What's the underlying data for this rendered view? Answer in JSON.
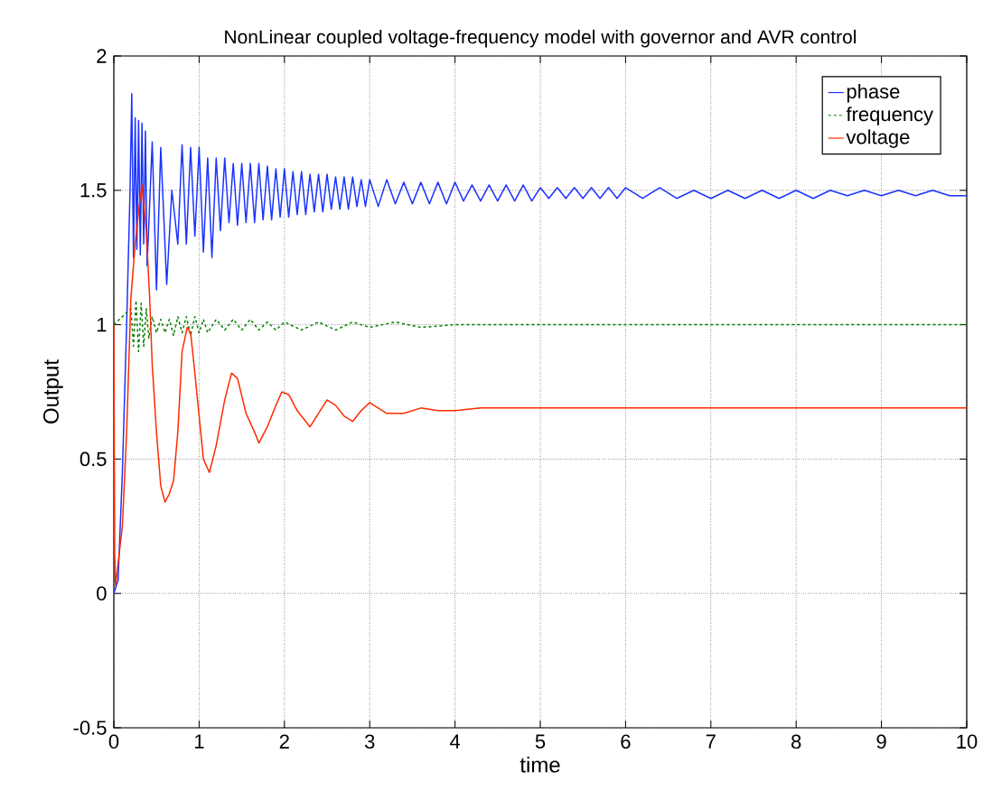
{
  "chart_data": {
    "type": "line",
    "title": "NonLinear coupled voltage-frequency model with governor and AVR control",
    "xlabel": "time",
    "ylabel": "Output",
    "xlim": [
      0,
      10
    ],
    "ylim": [
      -0.5,
      2
    ],
    "xticks": [
      0,
      1,
      2,
      3,
      4,
      5,
      6,
      7,
      8,
      9,
      10
    ],
    "yticks": [
      -0.5,
      0,
      0.5,
      1,
      1.5,
      2
    ],
    "grid": true,
    "legend": "top right",
    "series": [
      {
        "name": "phase",
        "color": "#1a33ff",
        "line_style": "solid",
        "x": [
          0,
          0.05,
          0.1,
          0.15,
          0.19,
          0.21,
          0.23,
          0.25,
          0.27,
          0.29,
          0.31,
          0.33,
          0.35,
          0.37,
          0.39,
          0.45,
          0.5,
          0.55,
          0.62,
          0.68,
          0.75,
          0.8,
          0.85,
          0.9,
          0.95,
          1.0,
          1.05,
          1.1,
          1.15,
          1.2,
          1.25,
          1.3,
          1.35,
          1.4,
          1.45,
          1.5,
          1.55,
          1.6,
          1.65,
          1.7,
          1.75,
          1.8,
          1.85,
          1.9,
          1.95,
          2.0,
          2.05,
          2.1,
          2.15,
          2.2,
          2.25,
          2.3,
          2.35,
          2.4,
          2.45,
          2.5,
          2.55,
          2.6,
          2.65,
          2.7,
          2.75,
          2.8,
          2.85,
          2.9,
          2.95,
          3.0,
          3.1,
          3.2,
          3.3,
          3.4,
          3.5,
          3.6,
          3.7,
          3.8,
          3.9,
          4.0,
          4.1,
          4.2,
          4.3,
          4.4,
          4.5,
          4.6,
          4.7,
          4.8,
          4.9,
          5.0,
          5.1,
          5.2,
          5.3,
          5.4,
          5.5,
          5.6,
          5.7,
          5.8,
          5.9,
          6.0,
          6.2,
          6.4,
          6.6,
          6.8,
          7.0,
          7.2,
          7.4,
          7.6,
          7.8,
          8.0,
          8.2,
          8.4,
          8.6,
          8.8,
          9.0,
          9.2,
          9.4,
          9.6,
          9.8,
          10
        ],
        "values": [
          0,
          0.05,
          0.45,
          1.0,
          1.5,
          1.86,
          1.25,
          1.77,
          1.28,
          1.76,
          1.26,
          1.75,
          1.3,
          1.72,
          1.22,
          1.68,
          1.13,
          1.66,
          1.15,
          1.5,
          1.3,
          1.67,
          1.3,
          1.66,
          1.33,
          1.66,
          1.27,
          1.62,
          1.25,
          1.62,
          1.35,
          1.62,
          1.38,
          1.6,
          1.37,
          1.6,
          1.38,
          1.6,
          1.38,
          1.6,
          1.39,
          1.59,
          1.39,
          1.58,
          1.4,
          1.58,
          1.4,
          1.57,
          1.41,
          1.57,
          1.41,
          1.56,
          1.42,
          1.56,
          1.42,
          1.56,
          1.43,
          1.55,
          1.43,
          1.55,
          1.43,
          1.55,
          1.44,
          1.54,
          1.44,
          1.54,
          1.44,
          1.54,
          1.45,
          1.53,
          1.45,
          1.53,
          1.45,
          1.53,
          1.45,
          1.53,
          1.46,
          1.52,
          1.46,
          1.52,
          1.46,
          1.52,
          1.46,
          1.52,
          1.46,
          1.51,
          1.47,
          1.51,
          1.47,
          1.51,
          1.47,
          1.51,
          1.47,
          1.51,
          1.47,
          1.51,
          1.47,
          1.51,
          1.47,
          1.5,
          1.47,
          1.5,
          1.47,
          1.5,
          1.47,
          1.5,
          1.47,
          1.5,
          1.48,
          1.5,
          1.48,
          1.5,
          1.48,
          1.5,
          1.48,
          1.48
        ]
      },
      {
        "name": "frequency",
        "color": "#008000",
        "line_style": "dashed",
        "x": [
          0,
          0.1,
          0.2,
          0.23,
          0.26,
          0.29,
          0.32,
          0.35,
          0.38,
          0.41,
          0.45,
          0.5,
          0.55,
          0.6,
          0.65,
          0.7,
          0.75,
          0.8,
          0.85,
          0.9,
          0.95,
          1.0,
          1.05,
          1.1,
          1.2,
          1.3,
          1.4,
          1.5,
          1.6,
          1.7,
          1.8,
          1.9,
          2.0,
          2.2,
          2.4,
          2.6,
          2.8,
          3.0,
          3.3,
          3.6,
          4.0,
          5,
          6,
          7,
          8,
          9,
          10
        ],
        "values": [
          1.0,
          1.03,
          1.06,
          0.92,
          1.09,
          0.9,
          1.08,
          0.92,
          1.06,
          0.95,
          1.03,
          0.97,
          1.02,
          0.97,
          1.02,
          0.96,
          1.03,
          0.97,
          1.03,
          0.96,
          1.03,
          0.97,
          1.02,
          0.97,
          1.02,
          0.98,
          1.02,
          0.98,
          1.02,
          0.98,
          1.01,
          0.98,
          1.01,
          0.98,
          1.01,
          0.98,
          1.01,
          0.99,
          1.01,
          0.99,
          1.0,
          1.0,
          1.0,
          1.0,
          1.0,
          1.0,
          1.0
        ]
      },
      {
        "name": "voltage",
        "color": "#ff2a00",
        "line_style": "solid",
        "x": [
          0,
          0.01,
          0.02,
          0.1,
          0.15,
          0.2,
          0.25,
          0.3,
          0.33,
          0.38,
          0.42,
          0.45,
          0.5,
          0.55,
          0.6,
          0.65,
          0.7,
          0.75,
          0.8,
          0.86,
          0.9,
          0.95,
          1.0,
          1.05,
          1.12,
          1.2,
          1.3,
          1.38,
          1.45,
          1.55,
          1.65,
          1.7,
          1.8,
          1.9,
          1.97,
          2.05,
          2.15,
          2.3,
          2.4,
          2.5,
          2.6,
          2.7,
          2.8,
          2.9,
          3.0,
          3.1,
          3.2,
          3.4,
          3.6,
          3.8,
          4.0,
          4.3,
          4.6,
          5,
          6,
          7,
          8,
          9,
          10
        ],
        "values": [
          1.0,
          0.15,
          0.03,
          0.25,
          0.6,
          1.1,
          1.3,
          1.45,
          1.52,
          1.35,
          1.1,
          0.85,
          0.6,
          0.4,
          0.34,
          0.37,
          0.42,
          0.6,
          0.9,
          0.99,
          0.97,
          0.82,
          0.66,
          0.5,
          0.45,
          0.55,
          0.72,
          0.82,
          0.8,
          0.67,
          0.6,
          0.56,
          0.62,
          0.7,
          0.75,
          0.74,
          0.68,
          0.62,
          0.67,
          0.72,
          0.7,
          0.66,
          0.64,
          0.68,
          0.71,
          0.69,
          0.67,
          0.67,
          0.69,
          0.68,
          0.68,
          0.69,
          0.69,
          0.69,
          0.69,
          0.69,
          0.69,
          0.69,
          0.69
        ]
      }
    ]
  }
}
